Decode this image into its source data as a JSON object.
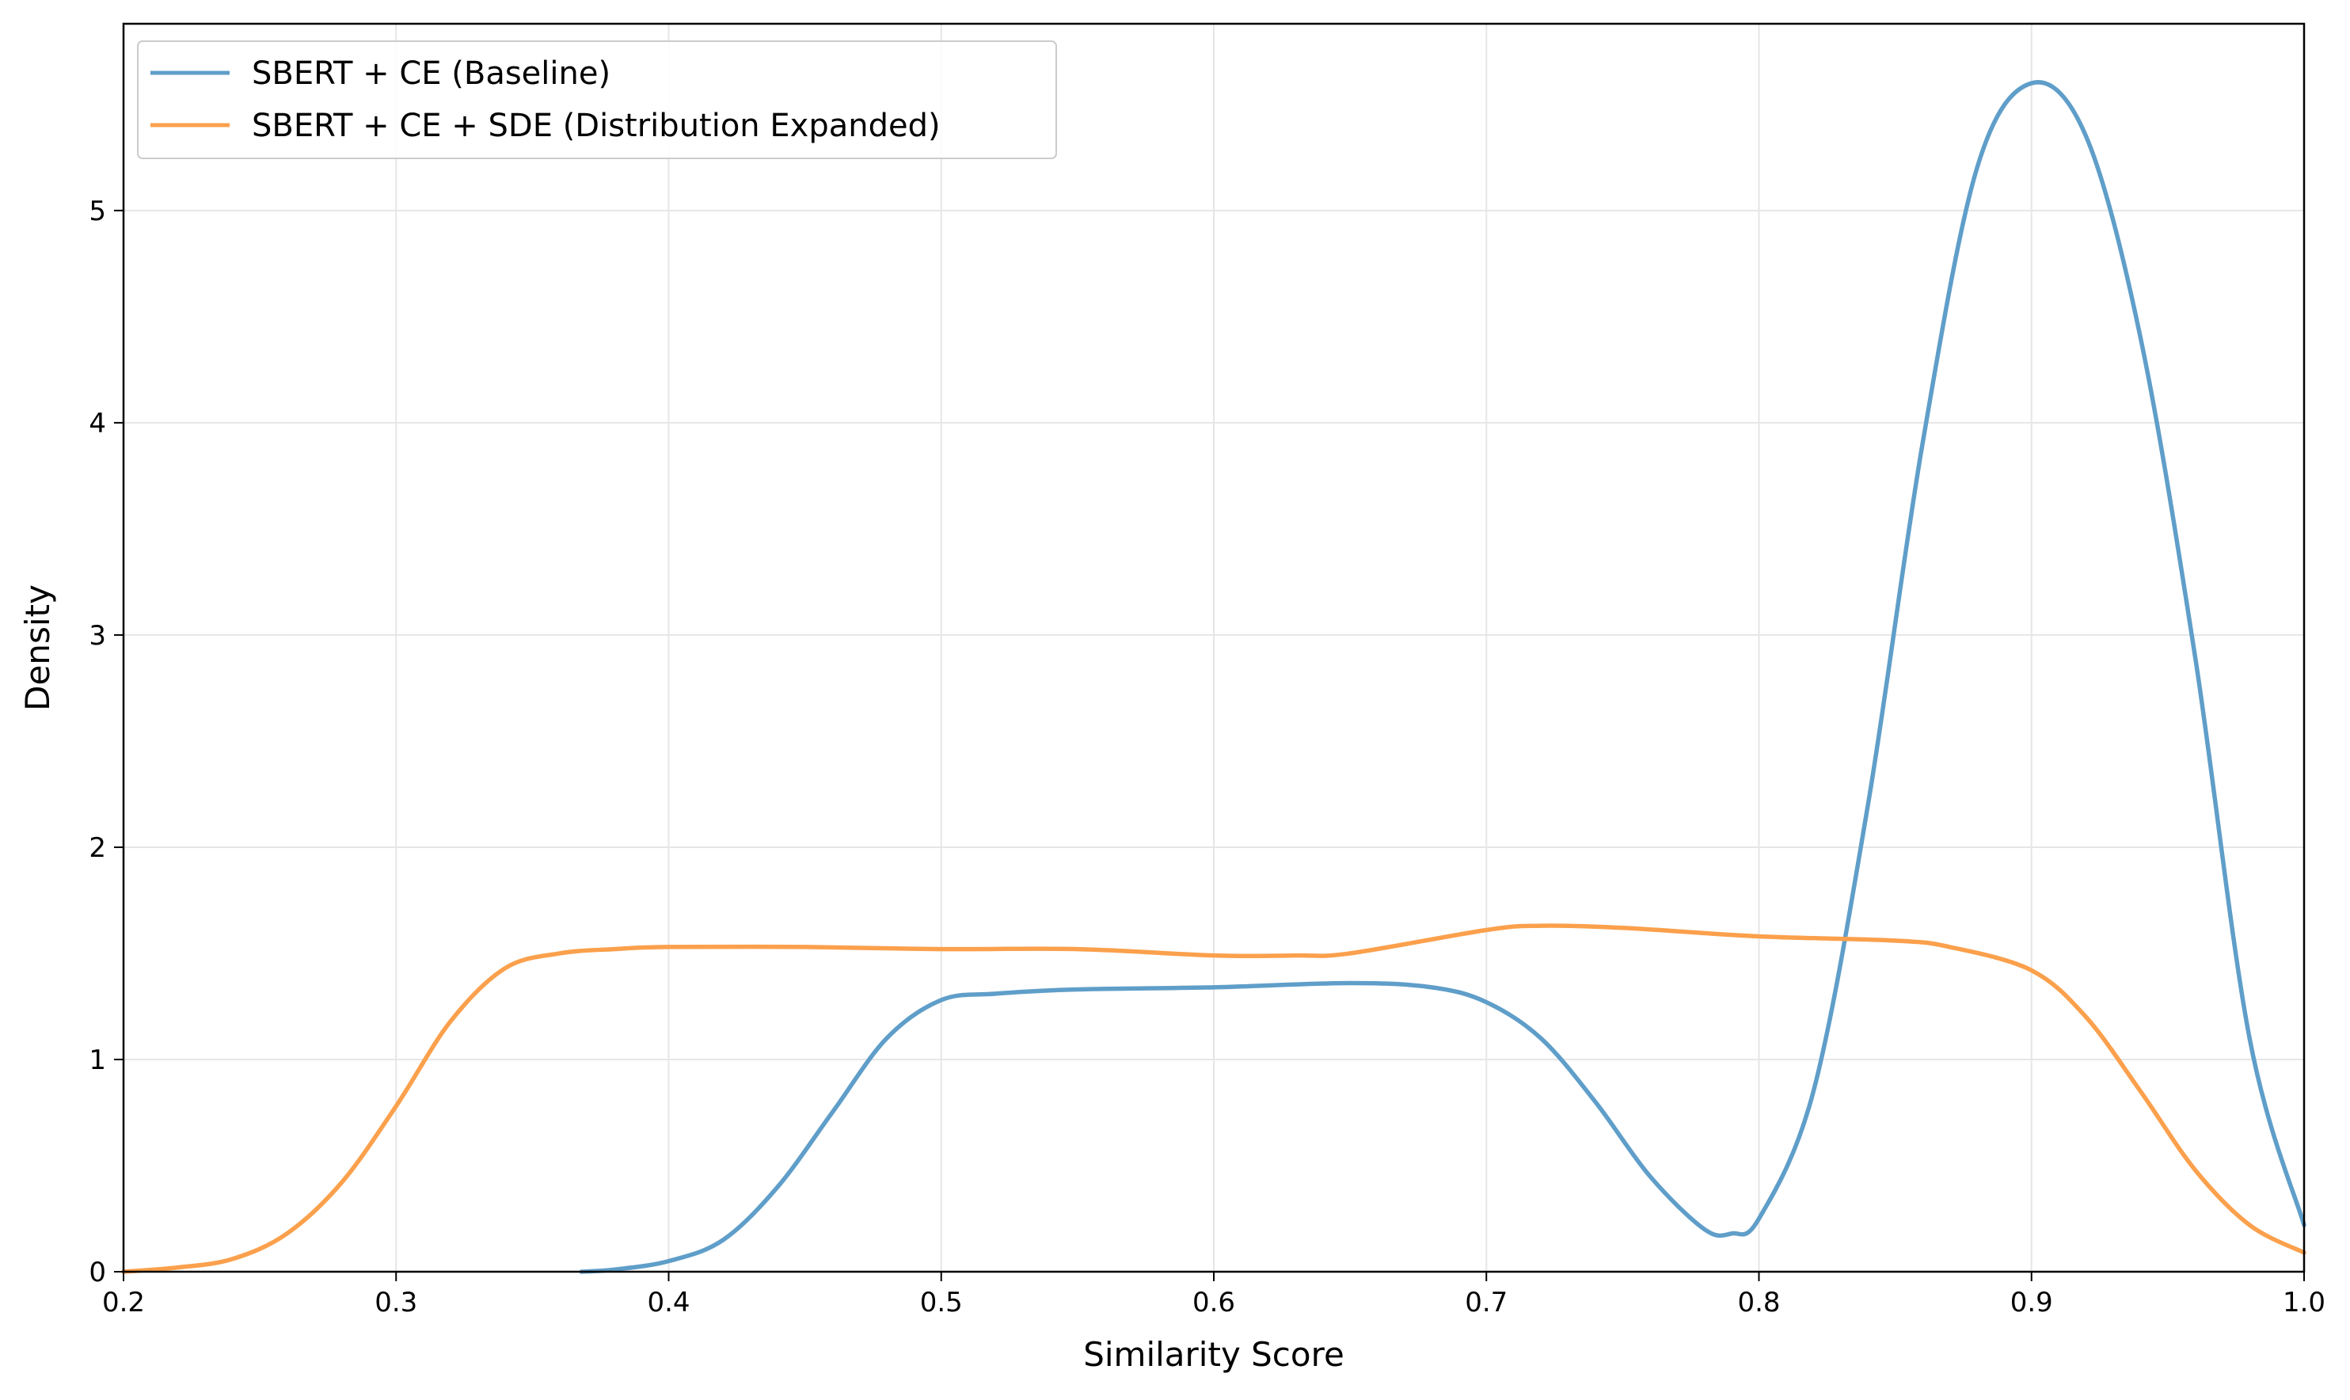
{
  "chart_data": {
    "type": "line",
    "title": "",
    "xlabel": "Similarity Score",
    "ylabel": "Density",
    "xlim": [
      0.2,
      1.0
    ],
    "ylim": [
      0,
      5.88
    ],
    "xticks": [
      "0.2",
      "0.3",
      "0.4",
      "0.5",
      "0.6",
      "0.7",
      "0.8",
      "0.9",
      "1.0"
    ],
    "yticks": [
      "0",
      "1",
      "2",
      "3",
      "4",
      "5"
    ],
    "grid": true,
    "legend_position": "top-left",
    "series": [
      {
        "name": "SBERT + CE (Baseline)",
        "color": "#5f9ec9",
        "x": [
          0.368,
          0.38,
          0.4,
          0.42,
          0.44,
          0.46,
          0.48,
          0.5,
          0.52,
          0.55,
          0.6,
          0.65,
          0.68,
          0.7,
          0.72,
          0.74,
          0.76,
          0.78,
          0.79,
          0.8,
          0.82,
          0.84,
          0.86,
          0.88,
          0.9,
          0.92,
          0.94,
          0.96,
          0.98,
          1.0
        ],
        "y": [
          0.0,
          0.01,
          0.05,
          0.15,
          0.4,
          0.75,
          1.1,
          1.28,
          1.31,
          1.33,
          1.34,
          1.36,
          1.34,
          1.27,
          1.1,
          0.8,
          0.45,
          0.2,
          0.18,
          0.25,
          0.85,
          2.2,
          3.9,
          5.2,
          5.6,
          5.35,
          4.4,
          2.9,
          1.1,
          0.22
        ]
      },
      {
        "name": "SBERT + CE + SDE (Distribution Expanded)",
        "color": "#fba04c",
        "x": [
          0.2,
          0.22,
          0.24,
          0.26,
          0.28,
          0.3,
          0.32,
          0.34,
          0.36,
          0.38,
          0.4,
          0.45,
          0.5,
          0.55,
          0.6,
          0.63,
          0.65,
          0.7,
          0.72,
          0.75,
          0.8,
          0.85,
          0.87,
          0.9,
          0.92,
          0.94,
          0.96,
          0.98,
          1.0
        ],
        "y": [
          0.0,
          0.02,
          0.06,
          0.18,
          0.42,
          0.78,
          1.18,
          1.43,
          1.5,
          1.52,
          1.53,
          1.53,
          1.52,
          1.52,
          1.49,
          1.49,
          1.5,
          1.61,
          1.63,
          1.62,
          1.58,
          1.56,
          1.53,
          1.42,
          1.2,
          0.85,
          0.48,
          0.22,
          0.09
        ]
      }
    ]
  }
}
